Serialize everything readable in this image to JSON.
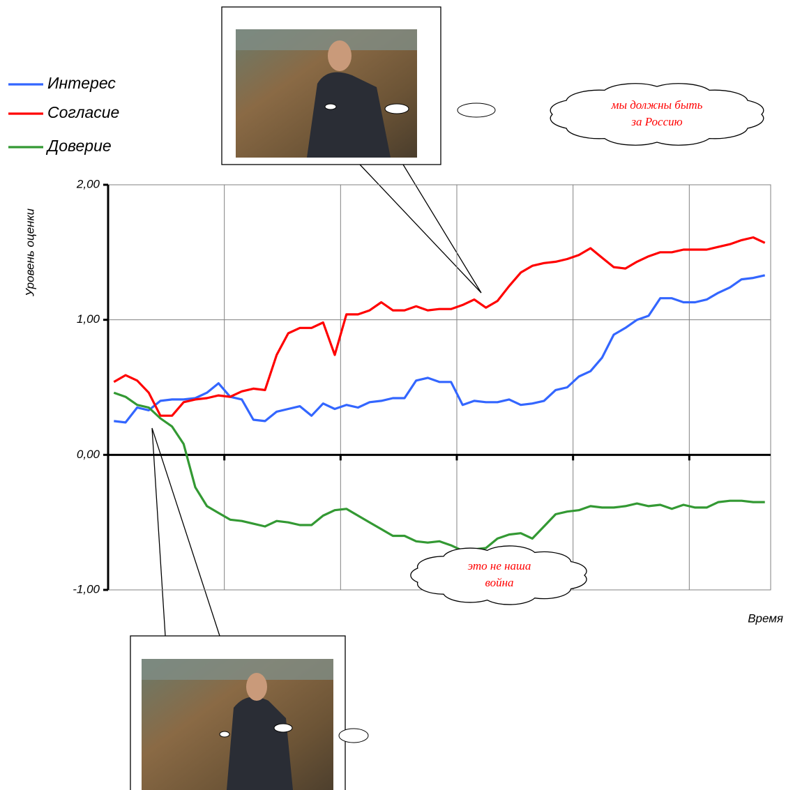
{
  "chart_data": {
    "type": "line",
    "y_label": "Уровень оценки",
    "x_label": "Время",
    "categories": [
      null,
      null,
      null,
      null,
      null,
      null,
      null,
      null,
      null,
      null,
      null,
      null,
      null,
      null,
      null,
      null,
      null,
      null,
      null,
      null,
      null,
      null,
      null,
      null,
      null,
      null,
      null,
      null,
      null,
      null,
      null,
      null,
      null,
      null,
      null,
      null,
      null,
      null,
      null,
      null,
      null,
      null,
      null,
      null,
      null,
      null,
      null,
      null,
      null,
      null,
      null,
      null,
      null,
      null,
      null,
      null,
      null
    ],
    "ylim": [
      -1,
      2
    ],
    "yticks": [
      {
        "value": -1,
        "label": "-1,00"
      },
      {
        "value": 0,
        "label": "0,00"
      },
      {
        "value": 1,
        "label": "1,00"
      },
      {
        "value": 2,
        "label": "2,00"
      }
    ],
    "grid": true,
    "legend": "top-left",
    "series": [
      {
        "name": "Интерес",
        "color": "#3366ff",
        "values": [
          0.25,
          0.24,
          0.35,
          0.33,
          0.4,
          0.41,
          0.41,
          0.42,
          0.46,
          0.53,
          0.43,
          0.41,
          0.26,
          0.25,
          0.32,
          0.34,
          0.36,
          0.29,
          0.38,
          0.34,
          0.37,
          0.35,
          0.39,
          0.4,
          0.42,
          0.42,
          0.55,
          0.57,
          0.54,
          0.54,
          0.37,
          0.4,
          0.39,
          0.39,
          0.41,
          0.37,
          0.38,
          0.4,
          0.48,
          0.5,
          0.58,
          0.62,
          0.72,
          0.89,
          0.94,
          1.0,
          1.03,
          1.16,
          1.16,
          1.13,
          1.13,
          1.15,
          1.2,
          1.24,
          1.3,
          1.31,
          1.33
        ]
      },
      {
        "name": "Согласие",
        "color": "#ff0000",
        "values": [
          0.54,
          0.59,
          0.55,
          0.46,
          0.29,
          0.29,
          0.39,
          0.41,
          0.42,
          0.44,
          0.43,
          0.47,
          0.49,
          0.48,
          0.74,
          0.9,
          0.94,
          0.94,
          0.98,
          0.74,
          1.04,
          1.04,
          1.07,
          1.13,
          1.07,
          1.07,
          1.1,
          1.07,
          1.08,
          1.08,
          1.11,
          1.15,
          1.09,
          1.14,
          1.25,
          1.35,
          1.4,
          1.42,
          1.43,
          1.45,
          1.48,
          1.53,
          1.46,
          1.39,
          1.38,
          1.43,
          1.47,
          1.5,
          1.5,
          1.52,
          1.52,
          1.52,
          1.54,
          1.56,
          1.59,
          1.61,
          1.57
        ]
      },
      {
        "name": "Доверие",
        "color": "#339933",
        "values": [
          0.46,
          0.43,
          0.37,
          0.35,
          0.27,
          0.21,
          0.08,
          -0.24,
          -0.38,
          -0.43,
          -0.48,
          -0.49,
          -0.51,
          -0.53,
          -0.49,
          -0.5,
          -0.52,
          -0.52,
          -0.45,
          -0.41,
          -0.4,
          -0.45,
          -0.5,
          -0.55,
          -0.6,
          -0.6,
          -0.64,
          -0.65,
          -0.64,
          -0.67,
          -0.71,
          -0.7,
          -0.69,
          -0.62,
          -0.59,
          -0.58,
          -0.62,
          -0.53,
          -0.44,
          -0.42,
          -0.41,
          -0.38,
          -0.39,
          -0.39,
          -0.38,
          -0.36,
          -0.38,
          -0.37,
          -0.4,
          -0.37,
          -0.39,
          -0.39,
          -0.35,
          -0.34,
          -0.34,
          -0.35,
          -0.35
        ]
      }
    ],
    "annotations": [
      {
        "lines": [
          "мы должны быть",
          "за Россию"
        ]
      },
      {
        "lines": [
          "это не наша",
          "война"
        ]
      }
    ]
  }
}
